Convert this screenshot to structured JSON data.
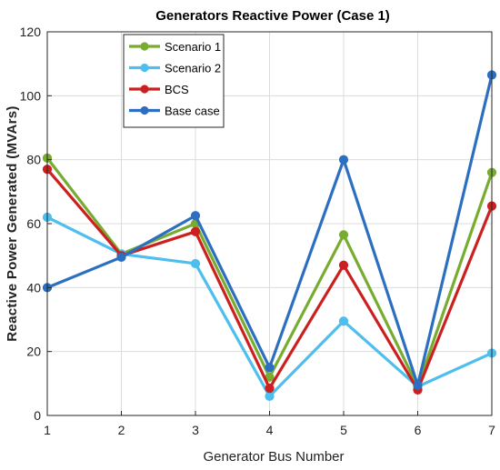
{
  "chart_data": {
    "type": "line",
    "title": "Generators Reactive Power (Case 1)",
    "xlabel": "Generator Bus Number",
    "ylabel": "Reactive Power Generated (MVArs)",
    "x": [
      1,
      2,
      3,
      4,
      5,
      6,
      7
    ],
    "xlim": [
      1,
      7
    ],
    "ylim": [
      0,
      120
    ],
    "xticks": [
      "1",
      "2",
      "3",
      "4",
      "5",
      "6",
      "7"
    ],
    "yticks": [
      "0",
      "20",
      "40",
      "60",
      "80",
      "100",
      "120"
    ],
    "grid": true,
    "legend_position": "top-left",
    "series": [
      {
        "name": "Scenario 1",
        "color": "#77ac30",
        "values": [
          80.5,
          50.5,
          60,
          12,
          56.5,
          9,
          76
        ]
      },
      {
        "name": "Scenario 2",
        "color": "#4dbeee",
        "values": [
          62,
          50.5,
          47.5,
          6,
          29.5,
          9,
          19.5
        ]
      },
      {
        "name": "BCS",
        "color": "#cc2020",
        "values": [
          77,
          50,
          57.5,
          8.5,
          47,
          8,
          65.5
        ]
      },
      {
        "name": "Base case",
        "color": "#2c6fc0",
        "values": [
          40,
          49.5,
          62.5,
          15,
          80,
          9.5,
          106.5
        ]
      }
    ]
  }
}
